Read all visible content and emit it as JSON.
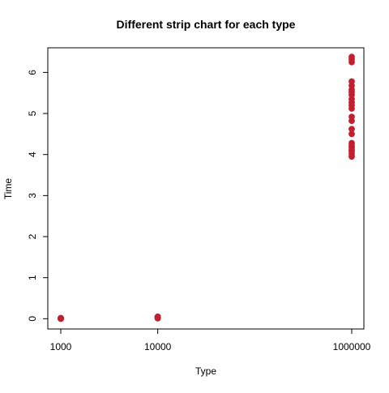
{
  "chart_data": {
    "type": "scatter",
    "title": "Different strip chart for each type",
    "xlabel": "Type",
    "ylabel": "Time",
    "categories": [
      "1000",
      "10000",
      "1000000"
    ],
    "y_ticks": [
      0,
      1,
      2,
      3,
      4,
      5,
      6
    ],
    "ylim": [
      -0.25,
      6.6
    ],
    "grid": false,
    "point_color": "#C2202E",
    "series": [
      {
        "category": "1000",
        "values": [
          0.0,
          0.002,
          0.004,
          0.006,
          0.008,
          0.01,
          0.012,
          0.014,
          0.016
        ]
      },
      {
        "category": "10000",
        "values": [
          0.01,
          0.015,
          0.02,
          0.025,
          0.03,
          0.035,
          0.04,
          0.045,
          0.05
        ]
      },
      {
        "category": "1000000",
        "values": [
          3.95,
          4.02,
          4.08,
          4.12,
          4.18,
          4.22,
          4.28,
          4.5,
          4.62,
          4.82,
          4.92,
          5.12,
          5.2,
          5.27,
          5.35,
          5.45,
          5.52,
          5.58,
          5.68,
          5.78,
          6.25,
          6.32,
          6.38
        ]
      }
    ]
  }
}
